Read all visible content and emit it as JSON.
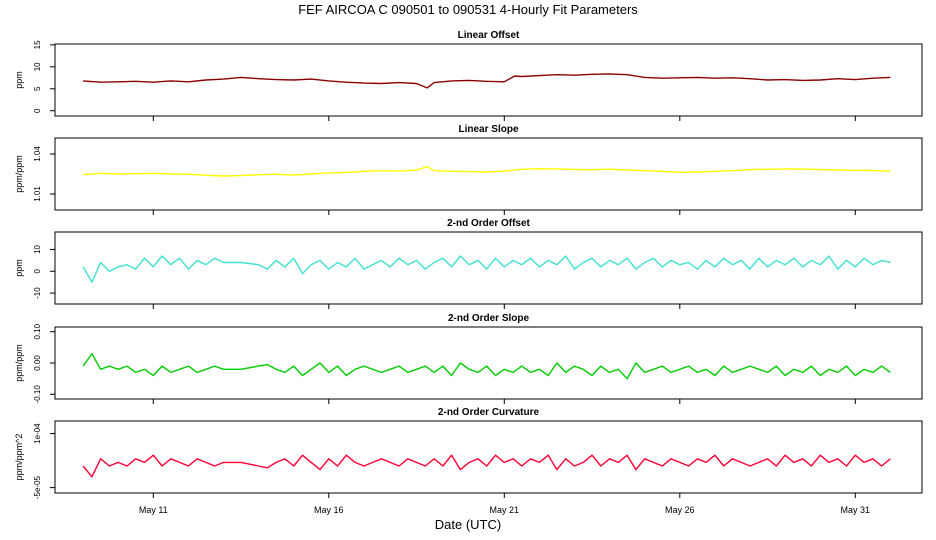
{
  "figure": {
    "title": "FEF   AIRCOA C   090501 to 090531   4-Hourly Fit Parameters",
    "xlabel": "Date (UTC)",
    "x_ticks": [
      "May 11",
      "May 16",
      "May 21",
      "May 26",
      "May 31"
    ],
    "x_tick_days": [
      11,
      16,
      21,
      26,
      31
    ],
    "x_range_days": [
      8.2,
      32.9
    ]
  },
  "chart_data": [
    {
      "type": "line",
      "title": "Linear Offset",
      "ylabel": "ppm",
      "ylim": [
        -1.2,
        15.2
      ],
      "y_ticks": [
        0,
        5,
        10,
        15
      ],
      "y_tick_labels": [
        "0",
        "5",
        "10",
        "15"
      ],
      "color": "#8b0000",
      "series": [
        {
          "x": [
            9.0,
            9.5,
            10.0,
            10.5,
            11.0,
            11.5,
            12.0,
            12.5,
            13.0,
            13.5,
            14.0,
            14.5,
            15.0,
            15.5,
            16.0,
            16.5,
            17.0,
            17.5,
            18.0,
            18.5,
            18.8,
            19.0,
            19.5,
            20.0,
            20.5,
            21.0,
            21.3,
            21.5,
            22.0,
            22.5,
            23.0,
            23.5,
            24.0,
            24.5,
            25.0,
            25.5,
            26.0,
            26.5,
            27.0,
            27.5,
            28.0,
            28.5,
            29.0,
            29.5,
            30.0,
            30.5,
            31.0,
            31.5,
            32.0
          ],
          "y": [
            6.8,
            6.5,
            6.6,
            6.7,
            6.5,
            6.8,
            6.6,
            7.0,
            7.2,
            7.6,
            7.3,
            7.1,
            7.0,
            7.2,
            6.8,
            6.5,
            6.3,
            6.2,
            6.4,
            6.2,
            5.2,
            6.4,
            6.8,
            6.9,
            6.7,
            6.6,
            7.9,
            7.8,
            8.0,
            8.2,
            8.1,
            8.3,
            8.4,
            8.2,
            7.6,
            7.4,
            7.5,
            7.6,
            7.4,
            7.5,
            7.3,
            7.0,
            7.1,
            6.9,
            7.0,
            7.3,
            7.1,
            7.4,
            7.6
          ]
        }
      ]
    },
    {
      "type": "line",
      "title": "Linear Slope",
      "ylabel": "ppm/ppm",
      "ylim": [
        0.998,
        1.052
      ],
      "y_ticks": [
        1.01,
        1.04
      ],
      "y_tick_labels": [
        "1.01",
        "1.04"
      ],
      "color": "#ffff00",
      "series": [
        {
          "x": [
            9.0,
            9.5,
            10.0,
            10.5,
            11.0,
            11.5,
            12.0,
            12.5,
            13.0,
            13.5,
            14.0,
            14.5,
            15.0,
            15.5,
            16.0,
            16.5,
            17.0,
            17.5,
            18.0,
            18.5,
            18.8,
            19.0,
            19.5,
            20.0,
            20.5,
            21.0,
            21.5,
            22.0,
            22.5,
            23.0,
            23.5,
            24.0,
            24.5,
            25.0,
            25.5,
            26.0,
            26.5,
            27.0,
            27.5,
            28.0,
            28.5,
            29.0,
            29.5,
            30.0,
            30.5,
            31.0,
            31.5,
            32.0
          ],
          "y": [
            1.0245,
            1.0255,
            1.025,
            1.0252,
            1.0255,
            1.025,
            1.0248,
            1.024,
            1.0235,
            1.0238,
            1.0245,
            1.0248,
            1.0242,
            1.025,
            1.0258,
            1.0262,
            1.027,
            1.0275,
            1.0272,
            1.028,
            1.0305,
            1.0275,
            1.027,
            1.0268,
            1.0265,
            1.0272,
            1.0285,
            1.029,
            1.0288,
            1.0284,
            1.0282,
            1.0286,
            1.028,
            1.0275,
            1.027,
            1.0262,
            1.0265,
            1.027,
            1.0275,
            1.0283,
            1.0285,
            1.0288,
            1.0287,
            1.0283,
            1.028,
            1.0278,
            1.0276,
            1.027
          ]
        }
      ]
    },
    {
      "type": "line",
      "title": "2-nd Order Offset",
      "ylabel": "ppm",
      "ylim": [
        -15,
        18
      ],
      "y_ticks": [
        -10,
        0,
        10
      ],
      "y_tick_labels": [
        "-10",
        "0",
        "10"
      ],
      "color": "#40e0d0",
      "series": [
        {
          "x": [
            9.0,
            9.25,
            9.5,
            9.75,
            10.0,
            10.25,
            10.5,
            10.75,
            11.0,
            11.25,
            11.5,
            11.75,
            12.0,
            12.25,
            12.5,
            12.75,
            13.0,
            13.5,
            14.0,
            14.25,
            14.5,
            14.75,
            15.0,
            15.25,
            15.5,
            15.75,
            16.0,
            16.25,
            16.5,
            16.75,
            17.0,
            17.25,
            17.5,
            17.75,
            18.0,
            18.25,
            18.5,
            18.75,
            19.0,
            19.25,
            19.5,
            19.75,
            20.0,
            20.25,
            20.5,
            20.75,
            21.0,
            21.25,
            21.5,
            21.75,
            22.0,
            22.25,
            22.5,
            22.75,
            23.0,
            23.25,
            23.5,
            23.75,
            24.0,
            24.25,
            24.5,
            24.75,
            25.0,
            25.25,
            25.5,
            25.75,
            26.0,
            26.25,
            26.5,
            26.75,
            27.0,
            27.25,
            27.5,
            27.75,
            28.0,
            28.25,
            28.5,
            28.75,
            29.0,
            29.25,
            29.5,
            29.75,
            30.0,
            30.25,
            30.5,
            30.75,
            31.0,
            31.25,
            31.5,
            31.75,
            32.0
          ],
          "y": [
            2,
            -5,
            4,
            0,
            2,
            3,
            1,
            6,
            2,
            7,
            3,
            6,
            1,
            5,
            3,
            6,
            4,
            4,
            3,
            1,
            5,
            2,
            6,
            -1,
            3,
            5,
            1,
            4,
            2,
            6,
            1,
            3,
            5,
            2,
            6,
            3,
            5,
            1,
            4,
            6,
            2,
            7,
            3,
            5,
            1,
            6,
            2,
            5,
            3,
            6,
            2,
            5,
            3,
            7,
            1,
            4,
            6,
            2,
            5,
            3,
            6,
            1,
            4,
            6,
            2,
            5,
            3,
            4,
            1,
            5,
            2,
            6,
            3,
            5,
            1,
            6,
            2,
            5,
            3,
            6,
            2,
            5,
            3,
            7,
            1,
            5,
            2,
            6,
            3,
            5,
            4
          ]
        }
      ]
    },
    {
      "type": "line",
      "title": "2-nd Order Slope",
      "ylabel": "ppm/ppm",
      "ylim": [
        -0.115,
        0.115
      ],
      "y_ticks": [
        -0.1,
        0.0,
        0.1
      ],
      "y_tick_labels": [
        "-0.10",
        "0.00",
        "0.10"
      ],
      "color": "#00cc00",
      "series": [
        {
          "x": [
            9.0,
            9.25,
            9.5,
            9.75,
            10.0,
            10.25,
            10.5,
            10.75,
            11.0,
            11.25,
            11.5,
            11.75,
            12.0,
            12.25,
            12.5,
            12.75,
            13.0,
            13.5,
            14.0,
            14.25,
            14.5,
            14.75,
            15.0,
            15.25,
            15.5,
            15.75,
            16.0,
            16.25,
            16.5,
            16.75,
            17.0,
            17.25,
            17.5,
            17.75,
            18.0,
            18.25,
            18.5,
            18.75,
            19.0,
            19.25,
            19.5,
            19.75,
            20.0,
            20.25,
            20.5,
            20.75,
            21.0,
            21.25,
            21.5,
            21.75,
            22.0,
            22.25,
            22.5,
            22.75,
            23.0,
            23.25,
            23.5,
            23.75,
            24.0,
            24.25,
            24.5,
            24.75,
            25.0,
            25.25,
            25.5,
            25.75,
            26.0,
            26.25,
            26.5,
            26.75,
            27.0,
            27.25,
            27.5,
            27.75,
            28.0,
            28.25,
            28.5,
            28.75,
            29.0,
            29.25,
            29.5,
            29.75,
            30.0,
            30.25,
            30.5,
            30.75,
            31.0,
            31.25,
            31.5,
            31.75,
            32.0
          ],
          "y": [
            -0.01,
            0.03,
            -0.02,
            -0.01,
            -0.02,
            -0.01,
            -0.03,
            -0.02,
            -0.04,
            -0.01,
            -0.03,
            -0.02,
            -0.01,
            -0.03,
            -0.02,
            -0.01,
            -0.02,
            -0.02,
            -0.01,
            -0.005,
            -0.02,
            -0.03,
            -0.01,
            -0.04,
            -0.02,
            0.0,
            -0.03,
            -0.01,
            -0.04,
            -0.02,
            -0.01,
            -0.02,
            -0.03,
            -0.02,
            -0.01,
            -0.03,
            -0.02,
            -0.01,
            -0.03,
            -0.01,
            -0.04,
            0.0,
            -0.02,
            -0.03,
            -0.01,
            -0.04,
            -0.02,
            -0.03,
            -0.01,
            -0.03,
            -0.02,
            -0.04,
            0.0,
            -0.03,
            -0.01,
            -0.02,
            -0.04,
            -0.01,
            -0.03,
            -0.02,
            -0.05,
            0.0,
            -0.03,
            -0.02,
            -0.01,
            -0.03,
            -0.02,
            -0.01,
            -0.03,
            -0.02,
            -0.04,
            -0.01,
            -0.03,
            -0.02,
            -0.01,
            -0.02,
            -0.03,
            -0.01,
            -0.04,
            -0.02,
            -0.03,
            -0.01,
            -0.04,
            -0.02,
            -0.03,
            -0.01,
            -0.04,
            -0.02,
            -0.03,
            -0.01,
            -0.03
          ]
        }
      ]
    },
    {
      "type": "line",
      "title": "2-nd Order Curvature",
      "ylabel": "ppm/ppm^2",
      "ylim": [
        -6.5e-05,
        0.000135
      ],
      "y_ticks": [
        -5e-05,
        0.0001
      ],
      "y_tick_labels": [
        "-5e-05",
        "1e-04"
      ],
      "color": "#ff0033",
      "series": [
        {
          "x": [
            9.0,
            9.25,
            9.5,
            9.75,
            10.0,
            10.25,
            10.5,
            10.75,
            11.0,
            11.25,
            11.5,
            11.75,
            12.0,
            12.25,
            12.5,
            12.75,
            13.0,
            13.5,
            14.0,
            14.25,
            14.5,
            14.75,
            15.0,
            15.25,
            15.5,
            15.75,
            16.0,
            16.25,
            16.5,
            16.75,
            17.0,
            17.25,
            17.5,
            17.75,
            18.0,
            18.25,
            18.5,
            18.75,
            19.0,
            19.25,
            19.5,
            19.75,
            20.0,
            20.25,
            20.5,
            20.75,
            21.0,
            21.25,
            21.5,
            21.75,
            22.0,
            22.25,
            22.5,
            22.75,
            23.0,
            23.25,
            23.5,
            23.75,
            24.0,
            24.25,
            24.5,
            24.75,
            25.0,
            25.25,
            25.5,
            25.75,
            26.0,
            26.25,
            26.5,
            26.75,
            27.0,
            27.25,
            27.5,
            27.75,
            28.0,
            28.25,
            28.5,
            28.75,
            29.0,
            29.25,
            29.5,
            29.75,
            30.0,
            30.25,
            30.5,
            30.75,
            31.0,
            31.25,
            31.5,
            31.75,
            32.0
          ],
          "y": [
            1e-05,
            -2e-05,
            3e-05,
            1e-05,
            2e-05,
            1e-05,
            3e-05,
            2e-05,
            4e-05,
            1e-05,
            3e-05,
            2e-05,
            1e-05,
            3e-05,
            2e-05,
            1e-05,
            2e-05,
            2e-05,
            1e-05,
            5e-06,
            2e-05,
            3e-05,
            1e-05,
            4e-05,
            2e-05,
            0.0,
            3e-05,
            1e-05,
            4e-05,
            2e-05,
            1e-05,
            2e-05,
            3e-05,
            2e-05,
            1e-05,
            3e-05,
            2e-05,
            1e-05,
            3e-05,
            1e-05,
            4e-05,
            0.0,
            2e-05,
            3e-05,
            1e-05,
            4e-05,
            2e-05,
            3e-05,
            1e-05,
            3e-05,
            2e-05,
            4e-05,
            0.0,
            3e-05,
            1e-05,
            2e-05,
            4e-05,
            1e-05,
            3e-05,
            2e-05,
            4e-05,
            0.0,
            3e-05,
            2e-05,
            1e-05,
            3e-05,
            2e-05,
            1e-05,
            3e-05,
            2e-05,
            4e-05,
            1e-05,
            3e-05,
            2e-05,
            1e-05,
            2e-05,
            3e-05,
            1e-05,
            4e-05,
            2e-05,
            3e-05,
            1e-05,
            4e-05,
            2e-05,
            3e-05,
            1e-05,
            4e-05,
            2e-05,
            3e-05,
            1e-05,
            3e-05
          ]
        }
      ]
    }
  ]
}
